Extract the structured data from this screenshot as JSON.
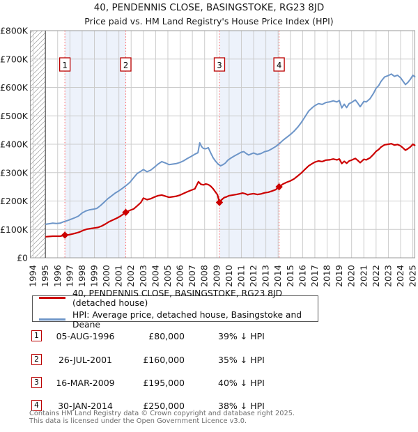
{
  "title": "40, PENDENNIS CLOSE, BASINGSTOKE, RG23 8JD",
  "subtitle": "Price paid vs. HM Land Registry's House Price Index (HPI)",
  "legend": [
    {
      "label": "40, PENDENNIS CLOSE, BASINGSTOKE, RG23 8JD (detached house)",
      "color": "#cc0000"
    },
    {
      "label": "HPI: Average price, detached house, Basingstoke and Deane",
      "color": "#6d95c8"
    }
  ],
  "table": {
    "rows": [
      {
        "n": "1",
        "date": "05-AUG-1996",
        "price": "£80,000",
        "hpi": "39% ↓ HPI"
      },
      {
        "n": "2",
        "date": "26-JUL-2001",
        "price": "£160,000",
        "hpi": "35% ↓ HPI"
      },
      {
        "n": "3",
        "date": "16-MAR-2009",
        "price": "£195,000",
        "hpi": "40% ↓ HPI"
      },
      {
        "n": "4",
        "date": "30-JAN-2014",
        "price": "£250,000",
        "hpi": "38% ↓ HPI"
      }
    ]
  },
  "footer": {
    "line1": "Contains HM Land Registry data © Crown copyright and database right 2025.",
    "line2": "This data is licensed under the Open Government Licence v3.0."
  },
  "chart_data": {
    "type": "line",
    "title": "40, PENDENNIS CLOSE, BASINGSTOKE, RG23 8JD",
    "xlabel": "",
    "ylabel": "",
    "x_range": [
      1994,
      2025.3
    ],
    "y_range": [
      0,
      800000
    ],
    "grid": true,
    "x_tick_labels": [
      "1994",
      "1995",
      "1996",
      "1997",
      "1998",
      "1999",
      "2000",
      "2001",
      "2002",
      "2003",
      "2004",
      "2005",
      "2006",
      "2007",
      "2008",
      "2009",
      "2010",
      "2011",
      "2012",
      "2013",
      "2014",
      "2015",
      "2016",
      "2017",
      "2018",
      "2019",
      "2020",
      "2021",
      "2022",
      "2023",
      "2024",
      "2025"
    ],
    "y_tick_labels": [
      "£0",
      "£100K",
      "£200K",
      "£300K",
      "£400K",
      "£500K",
      "£600K",
      "£700K",
      "£800K"
    ],
    "colors": {
      "price": "#cc0000",
      "hpi": "#6d95c8",
      "event_line": "#ff6a6a",
      "band": "#edf2fb",
      "grid": "#cccccc",
      "border": "#999999",
      "marker_box_border": "#bb0000"
    },
    "shaded_spans": [
      [
        1996.59,
        2001.56
      ],
      [
        2009.21,
        2014.08
      ]
    ],
    "hatch_span": [
      1994,
      1995
    ],
    "sales": [
      {
        "n": "1",
        "year": 1996.59,
        "price": 80000
      },
      {
        "n": "2",
        "year": 2001.56,
        "price": 160000
      },
      {
        "n": "3",
        "year": 2009.21,
        "price": 195000
      },
      {
        "n": "4",
        "year": 2014.08,
        "price": 250000
      }
    ],
    "series": [
      {
        "name": "40, PENDENNIS CLOSE, BASINGSTOKE, RG23 8JD (detached house)",
        "color": "#cc0000",
        "points": [
          [
            1995.0,
            74000
          ],
          [
            1995.3,
            75000
          ],
          [
            1995.6,
            76000
          ],
          [
            1995.9,
            76000
          ],
          [
            1996.2,
            76000
          ],
          [
            1996.59,
            80000
          ],
          [
            1996.9,
            81000
          ],
          [
            1997.2,
            84000
          ],
          [
            1997.5,
            87000
          ],
          [
            1997.8,
            91000
          ],
          [
            1998.1,
            97000
          ],
          [
            1998.4,
            101000
          ],
          [
            1998.7,
            103000
          ],
          [
            1999.0,
            105000
          ],
          [
            1999.3,
            107000
          ],
          [
            1999.6,
            112000
          ],
          [
            1999.9,
            119000
          ],
          [
            2000.2,
            127000
          ],
          [
            2000.5,
            133000
          ],
          [
            2000.8,
            139000
          ],
          [
            2001.1,
            146000
          ],
          [
            2001.56,
            160000
          ],
          [
            2001.9,
            167000
          ],
          [
            2002.2,
            172000
          ],
          [
            2002.5,
            183000
          ],
          [
            2002.8,
            195000
          ],
          [
            2003.0,
            210000
          ],
          [
            2003.3,
            205000
          ],
          [
            2003.6,
            208000
          ],
          [
            2003.9,
            214000
          ],
          [
            2004.2,
            219000
          ],
          [
            2004.5,
            221000
          ],
          [
            2004.8,
            217000
          ],
          [
            2005.1,
            213000
          ],
          [
            2005.4,
            215000
          ],
          [
            2005.7,
            217000
          ],
          [
            2006.0,
            221000
          ],
          [
            2006.3,
            227000
          ],
          [
            2006.6,
            233000
          ],
          [
            2006.9,
            238000
          ],
          [
            2007.2,
            243000
          ],
          [
            2007.5,
            268000
          ],
          [
            2007.7,
            259000
          ],
          [
            2007.9,
            257000
          ],
          [
            2008.1,
            260000
          ],
          [
            2008.3,
            258000
          ],
          [
            2008.5,
            252000
          ],
          [
            2008.7,
            243000
          ],
          [
            2008.9,
            231000
          ],
          [
            2009.05,
            222000
          ],
          [
            2009.21,
            195000
          ],
          [
            2009.4,
            205000
          ],
          [
            2009.6,
            212000
          ],
          [
            2009.8,
            215000
          ],
          [
            2010.0,
            219000
          ],
          [
            2010.3,
            221000
          ],
          [
            2010.6,
            223000
          ],
          [
            2010.9,
            226000
          ],
          [
            2011.1,
            228000
          ],
          [
            2011.3,
            226000
          ],
          [
            2011.5,
            222000
          ],
          [
            2011.7,
            224000
          ],
          [
            2012.0,
            226000
          ],
          [
            2012.3,
            223000
          ],
          [
            2012.6,
            225000
          ],
          [
            2012.9,
            229000
          ],
          [
            2013.2,
            231000
          ],
          [
            2013.5,
            235000
          ],
          [
            2013.8,
            240000
          ],
          [
            2014.08,
            250000
          ],
          [
            2014.4,
            260000
          ],
          [
            2014.7,
            266000
          ],
          [
            2015.0,
            271000
          ],
          [
            2015.3,
            278000
          ],
          [
            2015.6,
            288000
          ],
          [
            2015.9,
            299000
          ],
          [
            2016.2,
            312000
          ],
          [
            2016.5,
            324000
          ],
          [
            2016.8,
            332000
          ],
          [
            2017.0,
            337000
          ],
          [
            2017.3,
            341000
          ],
          [
            2017.6,
            339000
          ],
          [
            2017.9,
            344000
          ],
          [
            2018.2,
            345000
          ],
          [
            2018.5,
            348000
          ],
          [
            2018.8,
            345000
          ],
          [
            2019.0,
            348000
          ],
          [
            2019.2,
            332000
          ],
          [
            2019.4,
            340000
          ],
          [
            2019.6,
            333000
          ],
          [
            2019.8,
            341000
          ],
          [
            2020.0,
            344000
          ],
          [
            2020.3,
            350000
          ],
          [
            2020.5,
            343000
          ],
          [
            2020.7,
            335000
          ],
          [
            2021.0,
            347000
          ],
          [
            2021.2,
            345000
          ],
          [
            2021.5,
            352000
          ],
          [
            2021.8,
            365000
          ],
          [
            2022.0,
            375000
          ],
          [
            2022.2,
            381000
          ],
          [
            2022.4,
            390000
          ],
          [
            2022.7,
            398000
          ],
          [
            2023.0,
            400000
          ],
          [
            2023.25,
            402000
          ],
          [
            2023.5,
            397000
          ],
          [
            2023.75,
            399000
          ],
          [
            2024.0,
            394000
          ],
          [
            2024.2,
            387000
          ],
          [
            2024.4,
            379000
          ],
          [
            2024.6,
            384000
          ],
          [
            2024.8,
            391000
          ],
          [
            2025.0,
            400000
          ],
          [
            2025.2,
            395000
          ]
        ]
      },
      {
        "name": "HPI: Average price, detached house, Basingstoke and Deane",
        "color": "#6d95c8",
        "points": [
          [
            1995.0,
            118000
          ],
          [
            1995.3,
            120000
          ],
          [
            1995.6,
            122000
          ],
          [
            1995.9,
            121000
          ],
          [
            1996.2,
            122000
          ],
          [
            1996.5,
            127000
          ],
          [
            1996.8,
            131000
          ],
          [
            1997.1,
            136000
          ],
          [
            1997.4,
            141000
          ],
          [
            1997.7,
            147000
          ],
          [
            1998.0,
            158000
          ],
          [
            1998.3,
            165000
          ],
          [
            1998.6,
            169000
          ],
          [
            1998.9,
            171000
          ],
          [
            1999.2,
            174000
          ],
          [
            1999.5,
            184000
          ],
          [
            1999.8,
            196000
          ],
          [
            2000.1,
            208000
          ],
          [
            2000.4,
            218000
          ],
          [
            2000.7,
            228000
          ],
          [
            2001.0,
            236000
          ],
          [
            2001.3,
            245000
          ],
          [
            2001.6,
            255000
          ],
          [
            2001.9,
            266000
          ],
          [
            2002.2,
            282000
          ],
          [
            2002.5,
            297000
          ],
          [
            2002.8,
            305000
          ],
          [
            2003.0,
            311000
          ],
          [
            2003.3,
            303000
          ],
          [
            2003.6,
            309000
          ],
          [
            2003.9,
            319000
          ],
          [
            2004.2,
            330000
          ],
          [
            2004.5,
            339000
          ],
          [
            2004.8,
            334000
          ],
          [
            2005.1,
            328000
          ],
          [
            2005.4,
            330000
          ],
          [
            2005.7,
            332000
          ],
          [
            2006.0,
            336000
          ],
          [
            2006.3,
            342000
          ],
          [
            2006.6,
            350000
          ],
          [
            2006.9,
            357000
          ],
          [
            2007.2,
            365000
          ],
          [
            2007.45,
            370000
          ],
          [
            2007.6,
            405000
          ],
          [
            2007.75,
            392000
          ],
          [
            2007.9,
            385000
          ],
          [
            2008.1,
            384000
          ],
          [
            2008.3,
            388000
          ],
          [
            2008.5,
            369000
          ],
          [
            2008.7,
            352000
          ],
          [
            2008.9,
            340000
          ],
          [
            2009.1,
            330000
          ],
          [
            2009.3,
            324000
          ],
          [
            2009.5,
            328000
          ],
          [
            2009.7,
            334000
          ],
          [
            2009.9,
            344000
          ],
          [
            2010.1,
            350000
          ],
          [
            2010.4,
            358000
          ],
          [
            2010.7,
            365000
          ],
          [
            2011.0,
            372000
          ],
          [
            2011.2,
            374000
          ],
          [
            2011.4,
            367000
          ],
          [
            2011.6,
            362000
          ],
          [
            2011.8,
            366000
          ],
          [
            2012.0,
            369000
          ],
          [
            2012.3,
            364000
          ],
          [
            2012.6,
            367000
          ],
          [
            2012.9,
            374000
          ],
          [
            2013.2,
            377000
          ],
          [
            2013.5,
            384000
          ],
          [
            2013.8,
            392000
          ],
          [
            2014.1,
            402000
          ],
          [
            2014.4,
            414000
          ],
          [
            2014.7,
            424000
          ],
          [
            2015.0,
            434000
          ],
          [
            2015.3,
            446000
          ],
          [
            2015.6,
            460000
          ],
          [
            2015.9,
            477000
          ],
          [
            2016.2,
            497000
          ],
          [
            2016.5,
            517000
          ],
          [
            2016.8,
            529000
          ],
          [
            2017.0,
            536000
          ],
          [
            2017.3,
            543000
          ],
          [
            2017.6,
            540000
          ],
          [
            2017.9,
            547000
          ],
          [
            2018.2,
            549000
          ],
          [
            2018.5,
            553000
          ],
          [
            2018.8,
            549000
          ],
          [
            2019.0,
            554000
          ],
          [
            2019.2,
            528000
          ],
          [
            2019.4,
            541000
          ],
          [
            2019.6,
            529000
          ],
          [
            2019.8,
            543000
          ],
          [
            2020.0,
            547000
          ],
          [
            2020.3,
            556000
          ],
          [
            2020.5,
            545000
          ],
          [
            2020.7,
            532000
          ],
          [
            2021.0,
            551000
          ],
          [
            2021.2,
            549000
          ],
          [
            2021.5,
            560000
          ],
          [
            2021.8,
            580000
          ],
          [
            2022.0,
            597000
          ],
          [
            2022.2,
            606000
          ],
          [
            2022.4,
            621000
          ],
          [
            2022.7,
            637000
          ],
          [
            2023.0,
            642000
          ],
          [
            2023.25,
            647000
          ],
          [
            2023.5,
            639000
          ],
          [
            2023.75,
            643000
          ],
          [
            2024.0,
            634000
          ],
          [
            2024.2,
            622000
          ],
          [
            2024.4,
            610000
          ],
          [
            2024.6,
            618000
          ],
          [
            2024.8,
            629000
          ],
          [
            2025.0,
            643000
          ],
          [
            2025.2,
            636000
          ]
        ]
      }
    ]
  }
}
